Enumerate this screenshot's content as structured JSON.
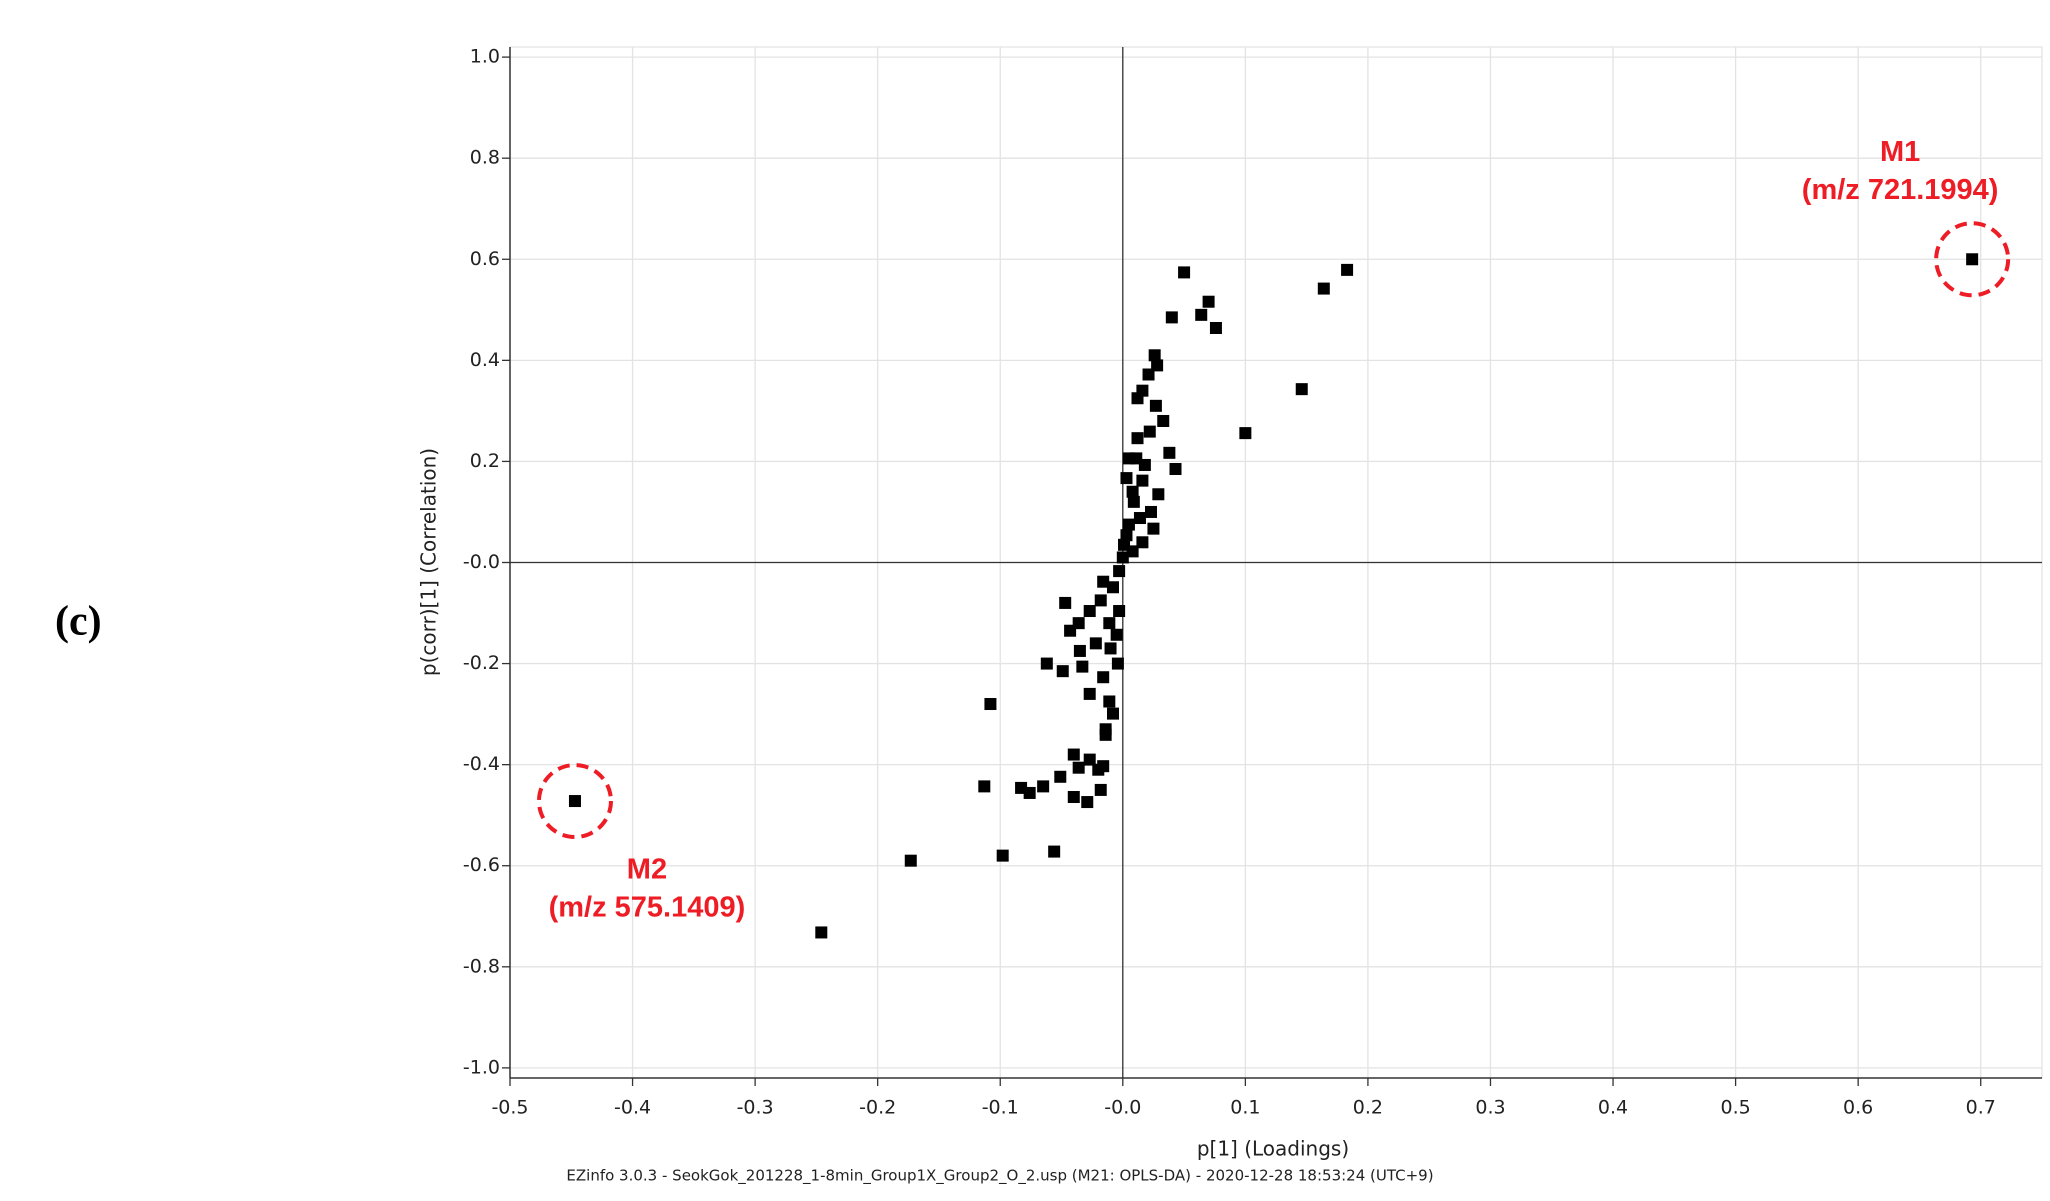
{
  "panel_label": "(c)",
  "footer": "EZinfo 3.0.3 - SeokGok_201228_1-8min_Group1X_Group2_O_2.usp (M21: OPLS-DA) - 2020-12-28 18:53:24 (UTC+9)",
  "chart_data": {
    "type": "scatter",
    "x_label": "p[1] (Loadings)",
    "y_label": "p(corr)[1] (Correlation)",
    "color": "#000000",
    "grid": true,
    "xlim": [
      -0.5,
      0.75
    ],
    "ylim": [
      -1.02,
      1.02
    ],
    "xticks": [
      -0.5,
      -0.4,
      -0.3,
      -0.2,
      -0.1,
      {
        "value": 0,
        "label": "-0.0"
      },
      0.1,
      0.2,
      0.3,
      0.4,
      0.5,
      0.6,
      0.7
    ],
    "yticks": [
      {
        "value": -1,
        "label": "-1.0"
      },
      -0.8,
      -0.6,
      -0.4,
      -0.2,
      {
        "value": 0,
        "label": "-0.0"
      },
      0.2,
      0.4,
      0.6,
      0.8,
      {
        "value": 1,
        "label": "1.0"
      }
    ],
    "annotations": [
      {
        "label": "M1",
        "text": "(m/z 721.1994)",
        "point": 0
      },
      {
        "label": "M2",
        "text": "(m/z 575.1409)",
        "point": 1
      }
    ],
    "x": [
      0.693,
      -0.447,
      -0.246,
      -0.173,
      -0.098,
      -0.056,
      -0.113,
      -0.108,
      0.05,
      0.183,
      0.164,
      0.07,
      0.064,
      0.076,
      0.04,
      0.146,
      0.1,
      0.026,
      0.028,
      0.021,
      0.016,
      0.027,
      0.012,
      0.033,
      0.022,
      0.012,
      0.038,
      0.043,
      0.005,
      0.003,
      0.016,
      0.029,
      0.009,
      0.023,
      0.025,
      0.016,
      0.005,
      0.001,
      0,
      -0.003,
      -0.008,
      -0.016,
      -0.018,
      -0.027,
      -0.036,
      -0.047,
      -0.043,
      -0.011,
      -0.022,
      -0.035,
      -0.01,
      -0.004,
      -0.062,
      -0.049,
      -0.033,
      -0.016,
      -0.027,
      -0.011,
      -0.008,
      -0.014,
      -0.04,
      -0.027,
      -0.016,
      -0.036,
      -0.051,
      -0.065,
      -0.083,
      -0.076,
      -0.04,
      -0.029,
      -0.018,
      -0.02,
      -0.014,
      -0.005,
      -0.003,
      0.003,
      0.008,
      0.011,
      0.018,
      0.014,
      0.008
    ],
    "values": [
      0.6,
      -0.472,
      -0.732,
      -0.59,
      -0.58,
      -0.572,
      -0.443,
      -0.28,
      0.574,
      0.579,
      0.542,
      0.516,
      0.49,
      0.464,
      0.485,
      0.343,
      0.256,
      0.41,
      0.39,
      0.372,
      0.34,
      0.31,
      0.325,
      0.28,
      0.259,
      0.246,
      0.217,
      0.185,
      0.206,
      0.167,
      0.162,
      0.135,
      0.12,
      0.1,
      0.067,
      0.04,
      0.075,
      0.035,
      0.01,
      -0.017,
      -0.049,
      -0.038,
      -0.075,
      -0.096,
      -0.12,
      -0.08,
      -0.135,
      -0.12,
      -0.16,
      -0.175,
      -0.17,
      -0.2,
      -0.2,
      -0.215,
      -0.206,
      -0.227,
      -0.26,
      -0.275,
      -0.299,
      -0.341,
      -0.38,
      -0.39,
      -0.403,
      -0.406,
      -0.424,
      -0.443,
      -0.446,
      -0.456,
      -0.464,
      -0.474,
      -0.45,
      -0.41,
      -0.33,
      -0.143,
      -0.096,
      0.054,
      0.14,
      0.206,
      0.193,
      0.088,
      0.022
    ]
  }
}
